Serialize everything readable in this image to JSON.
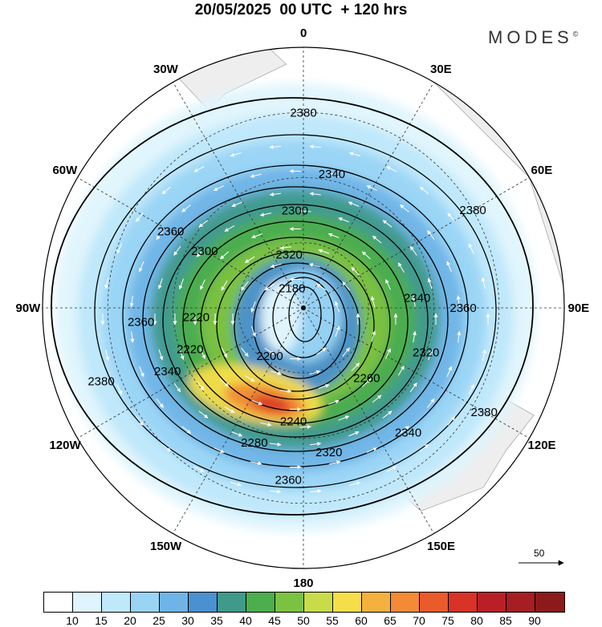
{
  "title": "20/05/2025  00 UTC  + 120 hrs",
  "brand": "MODES",
  "brand_mark": "©",
  "longitude_labels": [
    {
      "text": "0",
      "lon": 0
    },
    {
      "text": "30E",
      "lon": 30
    },
    {
      "text": "60E",
      "lon": 60
    },
    {
      "text": "90E",
      "lon": 90
    },
    {
      "text": "120E",
      "lon": 120
    },
    {
      "text": "150E",
      "lon": 150
    },
    {
      "text": "180",
      "lon": 180
    },
    {
      "text": "150W",
      "lon": 210
    },
    {
      "text": "120W",
      "lon": 240
    },
    {
      "text": "90W",
      "lon": 270
    },
    {
      "text": "60W",
      "lon": 300
    },
    {
      "text": "30W",
      "lon": 330
    }
  ],
  "contour_labels": [
    {
      "text": "2380",
      "lon": 0,
      "lat": 30
    },
    {
      "text": "2380",
      "lon": 60,
      "lat": 30
    },
    {
      "text": "2380",
      "lon": 120,
      "lat": 26
    },
    {
      "text": "2380",
      "lon": 250,
      "lat": 24
    },
    {
      "text": "2360",
      "lon": 90,
      "lat": 41
    },
    {
      "text": "2360",
      "lon": 185,
      "lat": 37
    },
    {
      "text": "2360",
      "lon": 265,
      "lat": 40
    },
    {
      "text": "2360",
      "lon": 300,
      "lat": 43
    },
    {
      "text": "2340",
      "lon": 12,
      "lat": 48
    },
    {
      "text": "2340",
      "lon": 85,
      "lat": 55
    },
    {
      "text": "2340",
      "lon": 140,
      "lat": 40
    },
    {
      "text": "2340",
      "lon": 245,
      "lat": 44
    },
    {
      "text": "2320",
      "lon": 110,
      "lat": 50
    },
    {
      "text": "2320",
      "lon": 170,
      "lat": 45
    },
    {
      "text": "2320",
      "lon": 345,
      "lat": 73
    },
    {
      "text": "2300",
      "lon": 355,
      "lat": 60
    },
    {
      "text": "2300",
      "lon": 300,
      "lat": 55
    },
    {
      "text": "2280",
      "lon": 200,
      "lat": 46
    },
    {
      "text": "2260",
      "lon": 138,
      "lat": 61
    },
    {
      "text": "2240",
      "lon": 185,
      "lat": 55
    },
    {
      "text": "2220",
      "lon": 250,
      "lat": 53
    },
    {
      "text": "2220",
      "lon": 265,
      "lat": 57
    },
    {
      "text": "2200",
      "lon": 215,
      "lat": 72
    },
    {
      "text": "2180",
      "lon": 330,
      "lat": 83
    }
  ],
  "ref_vector_label": "50",
  "colorbar": {
    "labels": [
      "10",
      "15",
      "20",
      "25",
      "30",
      "35",
      "40",
      "45",
      "50",
      "55",
      "60",
      "65",
      "70",
      "75",
      "80",
      "85",
      "90"
    ],
    "colors": [
      "#ffffff",
      "#dff4fd",
      "#bfe8fb",
      "#99d4f5",
      "#6fb4e6",
      "#4b90cf",
      "#3f9a8a",
      "#4cae4c",
      "#7cc242",
      "#c8dc4a",
      "#f5de4a",
      "#f5b13e",
      "#f28a36",
      "#ea5a2a",
      "#d93226",
      "#bb1f26",
      "#a61d22",
      "#8c1a1a"
    ]
  }
}
